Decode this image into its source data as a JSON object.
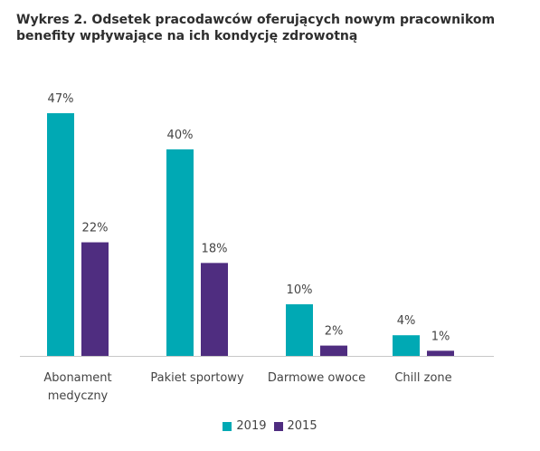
{
  "chart_data": {
    "type": "bar",
    "title_lines": [
      "Wykres 2. Odsetek pracodawców oferujących nowym pracownikom",
      "benefity wpływające na ich kondycję zdrowotną"
    ],
    "categories": [
      [
        "Abonament",
        "medyczny"
      ],
      [
        "Pakiet sportowy"
      ],
      [
        "Darmowe owoce"
      ],
      [
        "Chill zone"
      ]
    ],
    "series": [
      {
        "name": "2019",
        "color": "#00a9b4",
        "values": [
          47,
          40,
          10,
          4
        ],
        "labels": [
          "47%",
          "40%",
          "10%",
          "4%"
        ]
      },
      {
        "name": "2015",
        "color": "#4f2d80",
        "values": [
          22,
          18,
          2,
          1
        ],
        "labels": [
          "22%",
          "18%",
          "2%",
          "1%"
        ]
      }
    ],
    "ylim": [
      0,
      47
    ],
    "grid": false,
    "legend_position": "bottom-center"
  }
}
